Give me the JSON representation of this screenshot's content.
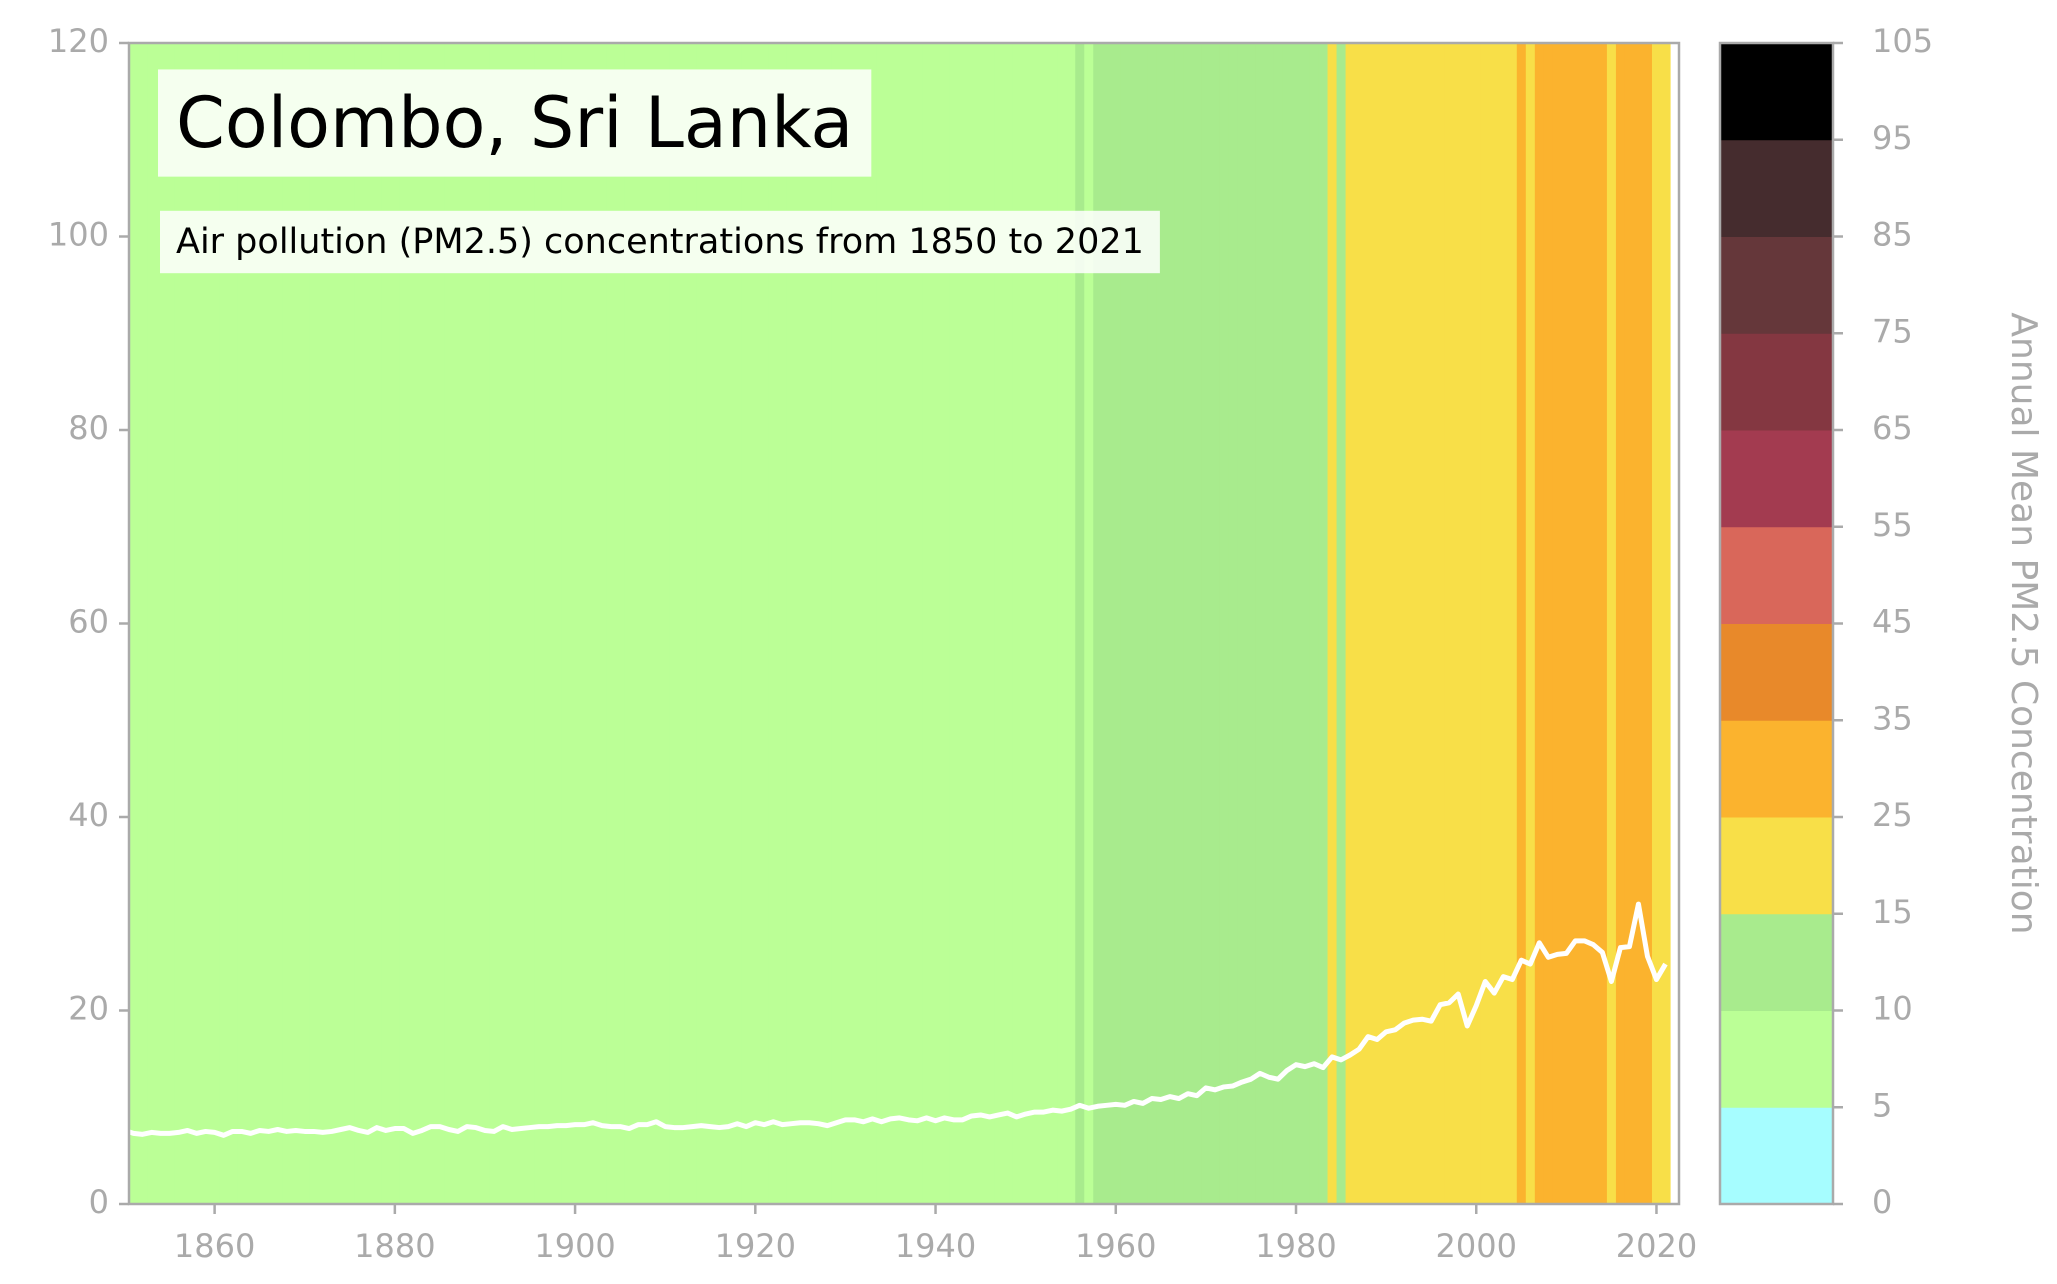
{
  "chart_data": {
    "type": "stripes-line",
    "title": "Colombo, Sri Lanka",
    "subtitle": "Air pollution (PM2.5) concentrations from 1850 to 2021",
    "x": [
      1850,
      1851,
      1852,
      1853,
      1854,
      1855,
      1856,
      1857,
      1858,
      1859,
      1860,
      1861,
      1862,
      1863,
      1864,
      1865,
      1866,
      1867,
      1868,
      1869,
      1870,
      1871,
      1872,
      1873,
      1874,
      1875,
      1876,
      1877,
      1878,
      1879,
      1880,
      1881,
      1882,
      1883,
      1884,
      1885,
      1886,
      1887,
      1888,
      1889,
      1890,
      1891,
      1892,
      1893,
      1894,
      1895,
      1896,
      1897,
      1898,
      1899,
      1900,
      1901,
      1902,
      1903,
      1904,
      1905,
      1906,
      1907,
      1908,
      1909,
      1910,
      1911,
      1912,
      1913,
      1914,
      1915,
      1916,
      1917,
      1918,
      1919,
      1920,
      1921,
      1922,
      1923,
      1924,
      1925,
      1926,
      1927,
      1928,
      1929,
      1930,
      1931,
      1932,
      1933,
      1934,
      1935,
      1936,
      1937,
      1938,
      1939,
      1940,
      1941,
      1942,
      1943,
      1944,
      1945,
      1946,
      1947,
      1948,
      1949,
      1950,
      1951,
      1952,
      1953,
      1954,
      1955,
      1956,
      1957,
      1958,
      1959,
      1960,
      1961,
      1962,
      1963,
      1964,
      1965,
      1966,
      1967,
      1968,
      1969,
      1970,
      1971,
      1972,
      1973,
      1974,
      1975,
      1976,
      1977,
      1978,
      1979,
      1980,
      1981,
      1982,
      1983,
      1984,
      1985,
      1986,
      1987,
      1988,
      1989,
      1990,
      1991,
      1992,
      1993,
      1994,
      1995,
      1996,
      1997,
      1998,
      1999,
      2000,
      2001,
      2002,
      2003,
      2004,
      2005,
      2006,
      2007,
      2008,
      2009,
      2010,
      2011,
      2012,
      2013,
      2014,
      2015,
      2016,
      2017,
      2018,
      2019,
      2020,
      2021
    ],
    "series": [
      {
        "color": "#ffffff",
        "values": [
          7.6,
          7.3,
          7.2,
          7.4,
          7.3,
          7.3,
          7.4,
          7.6,
          7.3,
          7.5,
          7.4,
          7.1,
          7.5,
          7.5,
          7.3,
          7.6,
          7.5,
          7.7,
          7.5,
          7.6,
          7.5,
          7.5,
          7.4,
          7.5,
          7.7,
          7.9,
          7.6,
          7.4,
          7.9,
          7.6,
          7.8,
          7.8,
          7.3,
          7.6,
          8.0,
          8.0,
          7.7,
          7.5,
          8.0,
          7.9,
          7.6,
          7.5,
          8.0,
          7.7,
          7.8,
          7.9,
          8.0,
          8.0,
          8.1,
          8.1,
          8.2,
          8.2,
          8.4,
          8.1,
          8.0,
          8.0,
          7.8,
          8.2,
          8.2,
          8.5,
          8.0,
          7.9,
          7.9,
          8.0,
          8.1,
          8.0,
          7.9,
          8.0,
          8.3,
          8.0,
          8.4,
          8.2,
          8.5,
          8.2,
          8.3,
          8.4,
          8.4,
          8.3,
          8.1,
          8.4,
          8.7,
          8.7,
          8.5,
          8.8,
          8.5,
          8.8,
          8.9,
          8.7,
          8.6,
          8.9,
          8.6,
          8.9,
          8.7,
          8.7,
          9.1,
          9.2,
          9.0,
          9.2,
          9.4,
          9.0,
          9.3,
          9.5,
          9.5,
          9.7,
          9.6,
          9.8,
          10.2,
          9.9,
          10.1,
          10.2,
          10.3,
          10.2,
          10.6,
          10.4,
          10.9,
          10.8,
          11.1,
          10.9,
          11.4,
          11.2,
          12.0,
          11.8,
          12.1,
          12.2,
          12.6,
          12.9,
          13.5,
          13.1,
          12.9,
          13.8,
          14.4,
          14.2,
          14.5,
          14.1,
          15.2,
          14.9,
          15.4,
          16.0,
          17.3,
          17.0,
          17.8,
          18.0,
          18.7,
          19.0,
          19.1,
          18.9,
          20.6,
          20.8,
          21.7,
          18.4,
          20.5,
          23.0,
          21.8,
          23.5,
          23.2,
          25.2,
          24.8,
          27.0,
          25.5,
          25.8,
          25.9,
          27.2,
          27.2,
          26.8,
          26.0,
          23.0,
          26.5,
          26.6,
          31.0,
          25.6,
          23.2,
          24.8
        ]
      }
    ],
    "xlim": [
      1850.5,
      2022.5
    ],
    "xticks": [
      1860,
      1880,
      1900,
      1920,
      1940,
      1960,
      1980,
      2000,
      2020
    ],
    "ylim": [
      0,
      120
    ],
    "yticks": [
      0,
      20,
      40,
      60,
      80,
      100,
      120
    ],
    "colorbar": {
      "label": "Annual Mean PM2.5 Concentration",
      "boundaries": [
        0,
        5,
        10,
        15,
        25,
        35,
        45,
        55,
        65,
        75,
        85,
        95,
        105
      ],
      "colors": [
        "#a6fdff",
        "#bbff96",
        "#a8eb8d",
        "#f8df48",
        "#fbb32e",
        "#e8892a",
        "#d9675a",
        "#a33b50",
        "#843741",
        "#65373a",
        "#452c2e",
        "#000000"
      ]
    }
  }
}
